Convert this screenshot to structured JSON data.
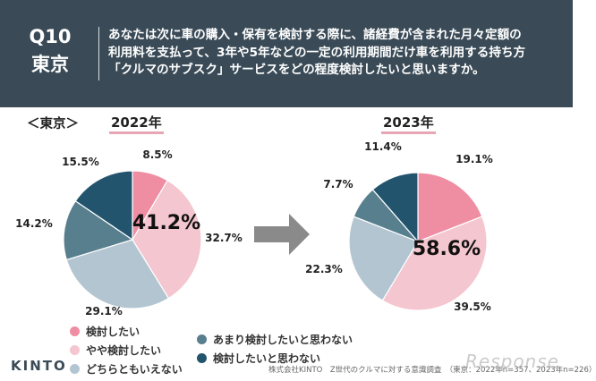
{
  "header": {
    "qnum": "Q10",
    "region": "東京",
    "question_lines": [
      "あなたは次に車の購入・保有を検討する際に、諸経費が含まれた月々定額の",
      "利用料を支払って、3年や5年などの一定の利用期間だけ車を利用する持ち方",
      "「クルマのサブスク」サービスをどの程度検討したいと思いますか。"
    ]
  },
  "region_label": "＜東京＞",
  "colors": {
    "header_bg": "#3a4b57",
    "kento": "#ef8ea3",
    "yaya": "#f4c6cf",
    "dochira": "#b3c5d1",
    "amari": "#587f8e",
    "omowanai": "#23546e",
    "arrow": "#8a8a8a"
  },
  "chart_data": [
    {
      "type": "pie",
      "title": "2022年",
      "categories": [
        "検討したい",
        "やや検討したい",
        "どちらともいえない",
        "あまり検討したいと思わない",
        "検討したいと思わない"
      ],
      "values": [
        8.5,
        32.7,
        29.1,
        14.2,
        15.5
      ],
      "labels": [
        "8.5%",
        "32.7%",
        "29.1%",
        "14.2%",
        "15.5%"
      ],
      "highlight": "41.2%"
    },
    {
      "type": "pie",
      "title": "2023年",
      "categories": [
        "検討したい",
        "やや検討したい",
        "どちらともいえない",
        "あまり検討したいと思わない",
        "検討したいと思わない"
      ],
      "values": [
        19.1,
        39.5,
        22.3,
        7.7,
        11.4
      ],
      "labels": [
        "19.1%",
        "39.5%",
        "22.3%",
        "7.7%",
        "11.4%"
      ],
      "highlight": "58.6%"
    }
  ],
  "legend": [
    {
      "label": "検討したい",
      "color": "#ef8ea3"
    },
    {
      "label": "やや検討したい",
      "color": "#f4c6cf"
    },
    {
      "label": "どちらともいえない",
      "color": "#b3c5d1"
    },
    {
      "label": "あまり検討したいと思わない",
      "color": "#587f8e"
    },
    {
      "label": "検討したいと思わない",
      "color": "#23546e"
    }
  ],
  "footer": {
    "logo": "KINTO",
    "source": "株式会社KINTO　Z世代のクルマに対する意識調査　（東京：2022年n=357、2023年n=226）",
    "watermark": "Response"
  }
}
